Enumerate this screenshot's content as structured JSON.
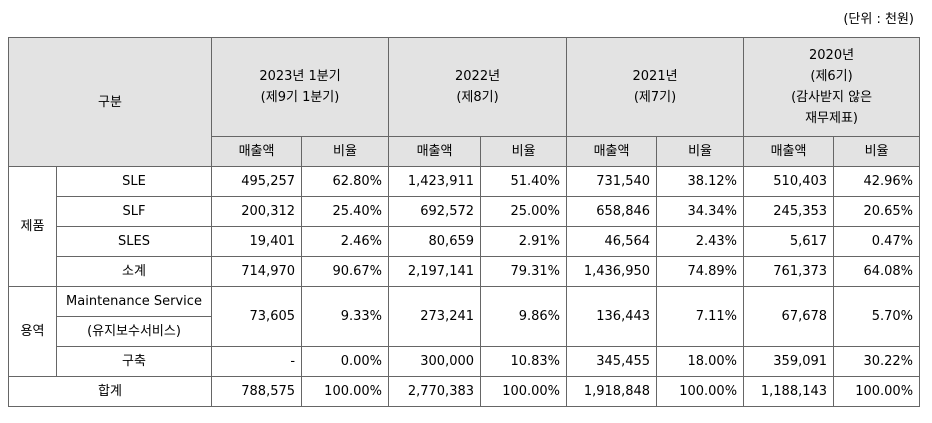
{
  "unit": "(단위 : 천원)",
  "header": {
    "category": "구분",
    "periods": [
      {
        "lines": [
          "2023년 1분기",
          "(제9기 1분기)"
        ]
      },
      {
        "lines": [
          "2022년",
          "(제8기)"
        ]
      },
      {
        "lines": [
          "2021년",
          "(제7기)"
        ]
      },
      {
        "lines": [
          "2020년",
          "(제6기)",
          "(감사받지 않은",
          "재무제표)"
        ]
      }
    ],
    "sales_label": "매출액",
    "ratio_label": "비율"
  },
  "groups": {
    "products": {
      "label": "제품",
      "rows": [
        {
          "name": "SLE",
          "values": [
            "495,257",
            "62.80%",
            "1,423,911",
            "51.40%",
            "731,540",
            "38.12%",
            "510,403",
            "42.96%"
          ]
        },
        {
          "name": "SLF",
          "values": [
            "200,312",
            "25.40%",
            "692,572",
            "25.00%",
            "658,846",
            "34.34%",
            "245,353",
            "20.65%"
          ]
        },
        {
          "name": "SLES",
          "values": [
            "19,401",
            "2.46%",
            "80,659",
            "2.91%",
            "46,564",
            "2.43%",
            "5,617",
            "0.47%"
          ]
        },
        {
          "name": "소계",
          "values": [
            "714,970",
            "90.67%",
            "2,197,141",
            "79.31%",
            "1,436,950",
            "74.89%",
            "761,373",
            "64.08%"
          ]
        }
      ]
    },
    "services": {
      "label": "용역",
      "maintenance": {
        "name_line1": "Maintenance Service",
        "name_line2": "(유지보수서비스)",
        "values": [
          "73,605",
          "9.33%",
          "273,241",
          "9.86%",
          "136,443",
          "7.11%",
          "67,678",
          "5.70%"
        ]
      },
      "build": {
        "name": "구축",
        "values": [
          "-",
          "0.00%",
          "300,000",
          "10.83%",
          "345,455",
          "18.00%",
          "359,091",
          "30.22%"
        ]
      }
    }
  },
  "total": {
    "label": "합계",
    "values": [
      "788,575",
      "100.00%",
      "2,770,383",
      "100.00%",
      "1,918,848",
      "100.00%",
      "1,188,143",
      "100.00%"
    ]
  }
}
